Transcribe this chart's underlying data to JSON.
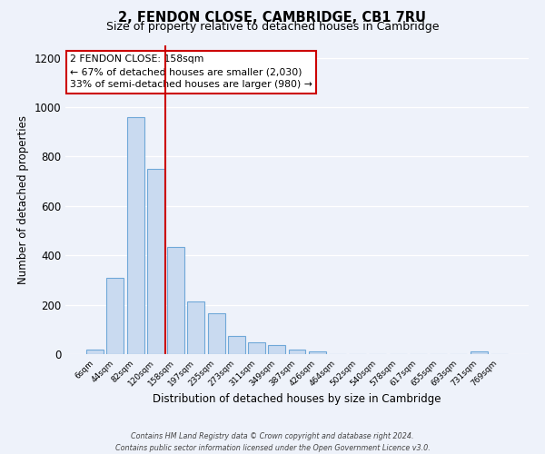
{
  "title": "2, FENDON CLOSE, CAMBRIDGE, CB1 7RU",
  "subtitle": "Size of property relative to detached houses in Cambridge",
  "xlabel": "Distribution of detached houses by size in Cambridge",
  "ylabel": "Number of detached properties",
  "bar_color": "#c9daf0",
  "bar_edge_color": "#6fa8d8",
  "bin_labels": [
    "6sqm",
    "44sqm",
    "82sqm",
    "120sqm",
    "158sqm",
    "197sqm",
    "235sqm",
    "273sqm",
    "311sqm",
    "349sqm",
    "387sqm",
    "426sqm",
    "464sqm",
    "502sqm",
    "540sqm",
    "578sqm",
    "617sqm",
    "655sqm",
    "693sqm",
    "731sqm",
    "769sqm"
  ],
  "bar_values": [
    20,
    310,
    960,
    750,
    435,
    215,
    165,
    75,
    48,
    35,
    20,
    10,
    0,
    0,
    0,
    0,
    0,
    0,
    0,
    10,
    0
  ],
  "vline_color": "#cc0000",
  "annotation_title": "2 FENDON CLOSE: 158sqm",
  "annotation_line1": "← 67% of detached houses are smaller (2,030)",
  "annotation_line2": "33% of semi-detached houses are larger (980) →",
  "annotation_box_color": "#ffffff",
  "annotation_box_edge": "#cc0000",
  "ylim": [
    0,
    1250
  ],
  "yticks": [
    0,
    200,
    400,
    600,
    800,
    1000,
    1200
  ],
  "footer1": "Contains HM Land Registry data © Crown copyright and database right 2024.",
  "footer2": "Contains public sector information licensed under the Open Government Licence v3.0.",
  "background_color": "#eef2fa",
  "grid_color": "#ffffff",
  "title_fontsize": 10.5,
  "subtitle_fontsize": 9
}
